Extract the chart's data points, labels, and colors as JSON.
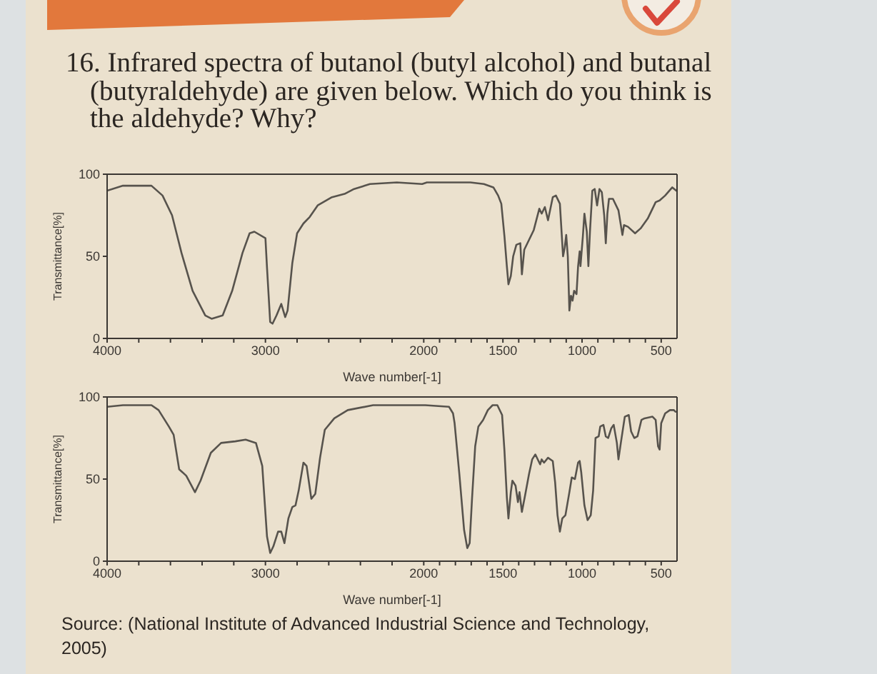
{
  "chart_data": [
    {
      "type": "line",
      "title": "16. Infrared spectra of butanol (butyl alcohol) and butanal (butyraldehyde) are given below. Which do you think is the aldehyde? Why?",
      "xlabel": "Wave number[-1]",
      "ylabel": "Transmittance[%]",
      "xlim": [
        4000,
        400
      ],
      "ylim": [
        0,
        100
      ],
      "xticks": [
        4000,
        {
          "value": 3800,
          "label": null
        },
        {
          "value": 3600,
          "label": null
        },
        {
          "value": 3400,
          "label": null
        },
        {
          "value": 3200,
          "label": null
        },
        3000,
        {
          "value": 2800,
          "label": null
        },
        {
          "value": 2600,
          "label": null
        },
        {
          "value": 2400,
          "label": null
        },
        {
          "value": 2200,
          "label": null
        },
        2000,
        {
          "value": 1900,
          "label": null
        },
        {
          "value": 1800,
          "label": null
        },
        {
          "value": 1700,
          "label": null
        },
        {
          "value": 1600,
          "label": null
        },
        1500,
        {
          "value": 1400,
          "label": null
        },
        {
          "value": 1300,
          "label": null
        },
        {
          "value": 1200,
          "label": null
        },
        {
          "value": 1100,
          "label": null
        },
        1000,
        {
          "value": 900,
          "label": null
        },
        {
          "value": 800,
          "label": null
        },
        {
          "value": 700,
          "label": null
        },
        {
          "value": 600,
          "label": null
        },
        500
      ],
      "yticks": [
        0,
        50,
        100
      ],
      "marker": "none",
      "line_style": "solid",
      "series": [
        {
          "color": "#57534d",
          "x": [
            4000,
            3900,
            3720,
            3650,
            3590,
            3530,
            3460,
            3380,
            3340,
            3270,
            3210,
            3145,
            3100,
            3070,
            3000,
            2990,
            2970,
            2955,
            2930,
            2900,
            2875,
            2860,
            2830,
            2800,
            2760,
            2720,
            2670,
            2580,
            2500,
            2440,
            2340,
            2170,
            2010,
            1980,
            1825,
            1705,
            1620,
            1560,
            1530,
            1510,
            1490,
            1475,
            1465,
            1450,
            1435,
            1415,
            1390,
            1380,
            1365,
            1335,
            1305,
            1270,
            1255,
            1235,
            1215,
            1185,
            1165,
            1140,
            1120,
            1110,
            1100,
            1090,
            1080,
            1070,
            1060,
            1050,
            1035,
            1025,
            1015,
            1010,
            995,
            985,
            970,
            960,
            950,
            935,
            920,
            905,
            890,
            875,
            860,
            850,
            840,
            830,
            805,
            770,
            745,
            735,
            710,
            665,
            630,
            585,
            535,
            510,
            475,
            430,
            405
          ],
          "values": [
            90,
            93,
            93,
            87,
            75,
            52,
            29,
            14,
            12,
            14,
            29,
            52,
            64,
            65,
            61,
            43,
            10,
            9,
            14,
            21,
            13,
            17,
            46,
            64,
            70,
            74,
            81,
            86,
            88,
            91,
            94,
            95,
            94,
            95,
            95,
            95,
            94,
            92,
            87,
            82,
            62,
            44,
            33,
            38,
            50,
            57,
            58,
            39,
            54,
            60,
            66,
            79,
            76,
            80,
            72,
            86,
            87,
            82,
            50,
            55,
            63,
            50,
            17,
            26,
            23,
            29,
            27,
            44,
            53,
            44,
            62,
            76,
            65,
            44,
            65,
            90,
            91,
            81,
            91,
            89,
            75,
            58,
            76,
            85,
            85,
            78,
            63,
            69,
            68,
            64,
            67,
            73,
            83,
            84,
            87,
            92,
            90
          ]
        }
      ]
    },
    {
      "type": "line",
      "xlabel": "Wave number[-1]",
      "ylabel": "Transmittance[%]",
      "xlim": [
        4000,
        400
      ],
      "ylim": [
        0,
        100
      ],
      "xticks": [
        4000,
        {
          "value": 3800,
          "label": null
        },
        {
          "value": 3600,
          "label": null
        },
        {
          "value": 3400,
          "label": null
        },
        {
          "value": 3200,
          "label": null
        },
        3000,
        {
          "value": 2800,
          "label": null
        },
        {
          "value": 2600,
          "label": null
        },
        {
          "value": 2400,
          "label": null
        },
        {
          "value": 2200,
          "label": null
        },
        2000,
        {
          "value": 1900,
          "label": null
        },
        {
          "value": 1800,
          "label": null
        },
        {
          "value": 1700,
          "label": null
        },
        {
          "value": 1600,
          "label": null
        },
        1500,
        {
          "value": 1400,
          "label": null
        },
        {
          "value": 1300,
          "label": null
        },
        {
          "value": 1200,
          "label": null
        },
        {
          "value": 1100,
          "label": null
        },
        1000,
        {
          "value": 900,
          "label": null
        },
        {
          "value": 800,
          "label": null
        },
        {
          "value": 700,
          "label": null
        },
        {
          "value": 600,
          "label": null
        },
        500
      ],
      "yticks": [
        0,
        50,
        100
      ],
      "marker": "none",
      "line_style": "solid",
      "annotations": [
        "Source: (National Institute of Advanced Industrial Science and Technology, 2005)"
      ],
      "series": [
        {
          "color": "#57534d",
          "x": [
            4000,
            3900,
            3720,
            3675,
            3610,
            3580,
            3545,
            3500,
            3445,
            3410,
            3345,
            3280,
            3190,
            3125,
            3060,
            3020,
            2990,
            2970,
            2950,
            2920,
            2900,
            2880,
            2855,
            2830,
            2810,
            2790,
            2760,
            2740,
            2710,
            2685,
            2655,
            2625,
            2565,
            2480,
            2320,
            1990,
            1840,
            1815,
            1805,
            1775,
            1745,
            1725,
            1710,
            1695,
            1675,
            1655,
            1625,
            1595,
            1565,
            1535,
            1505,
            1490,
            1475,
            1465,
            1450,
            1440,
            1420,
            1405,
            1395,
            1380,
            1360,
            1335,
            1315,
            1295,
            1265,
            1255,
            1240,
            1215,
            1185,
            1170,
            1155,
            1140,
            1125,
            1105,
            1080,
            1065,
            1045,
            1025,
            1015,
            1005,
            985,
            965,
            945,
            930,
            915,
            895,
            885,
            865,
            850,
            835,
            815,
            800,
            780,
            770,
            755,
            730,
            705,
            690,
            670,
            650,
            625,
            605,
            555,
            535,
            520,
            510,
            500,
            475,
            445,
            420,
            410
          ],
          "values": [
            94,
            95,
            95,
            92,
            82,
            77,
            56,
            52,
            42,
            49,
            66,
            72,
            73,
            74,
            72,
            58,
            15,
            5,
            9,
            18,
            18,
            11,
            26,
            33,
            34,
            43,
            60,
            58,
            38,
            41,
            63,
            80,
            87,
            92,
            95,
            95,
            94,
            90,
            84,
            53,
            19,
            8,
            11,
            38,
            70,
            82,
            86,
            92,
            95,
            95,
            89,
            67,
            39,
            26,
            42,
            49,
            46,
            36,
            42,
            30,
            40,
            53,
            62,
            65,
            59,
            62,
            60,
            63,
            61,
            48,
            28,
            18,
            26,
            28,
            42,
            51,
            50,
            60,
            61,
            54,
            34,
            25,
            28,
            43,
            75,
            76,
            82,
            83,
            76,
            75,
            81,
            83,
            72,
            62,
            72,
            88,
            89,
            79,
            75,
            76,
            86,
            87,
            88,
            86,
            70,
            68,
            84,
            90,
            92,
            92,
            91
          ]
        }
      ]
    }
  ]
}
